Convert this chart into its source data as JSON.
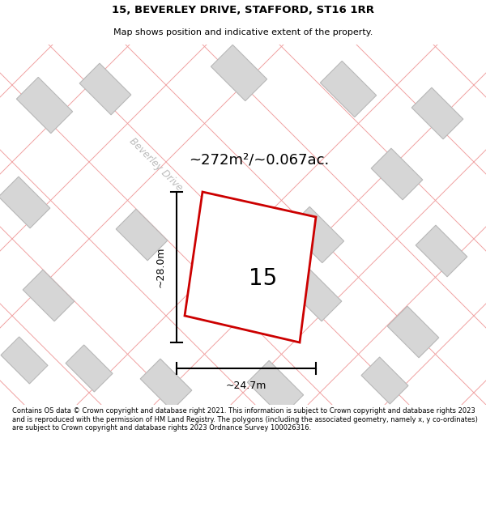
{
  "title_line1": "15, BEVERLEY DRIVE, STAFFORD, ST16 1RR",
  "title_line2": "Map shows position and indicative extent of the property.",
  "area_text": "~272m²/~0.067ac.",
  "width_label": "~24.7m",
  "height_label": "~28.0m",
  "plot_number": "15",
  "road_label": "Beverley Drive",
  "footer_text": "Contains OS data © Crown copyright and database right 2021. This information is subject to Crown copyright and database rights 2023 and is reproduced with the permission of HM Land Registry. The polygons (including the associated geometry, namely x, y co-ordinates) are subject to Crown copyright and database rights 2023 Ordnance Survey 100026316.",
  "map_bg": "#f2f2f2",
  "plot_fill": "#ffffff",
  "plot_edge": "#cc0000",
  "building_fill": "#d6d6d6",
  "building_edge": "#b8b8b8",
  "road_line_color": "#f0a0a0",
  "plot_boundary_color": "#e8b8b8",
  "dim_line_color": "#000000",
  "road_label_color": "#bbbbbb",
  "title_color": "#000000",
  "footer_color": "#000000"
}
